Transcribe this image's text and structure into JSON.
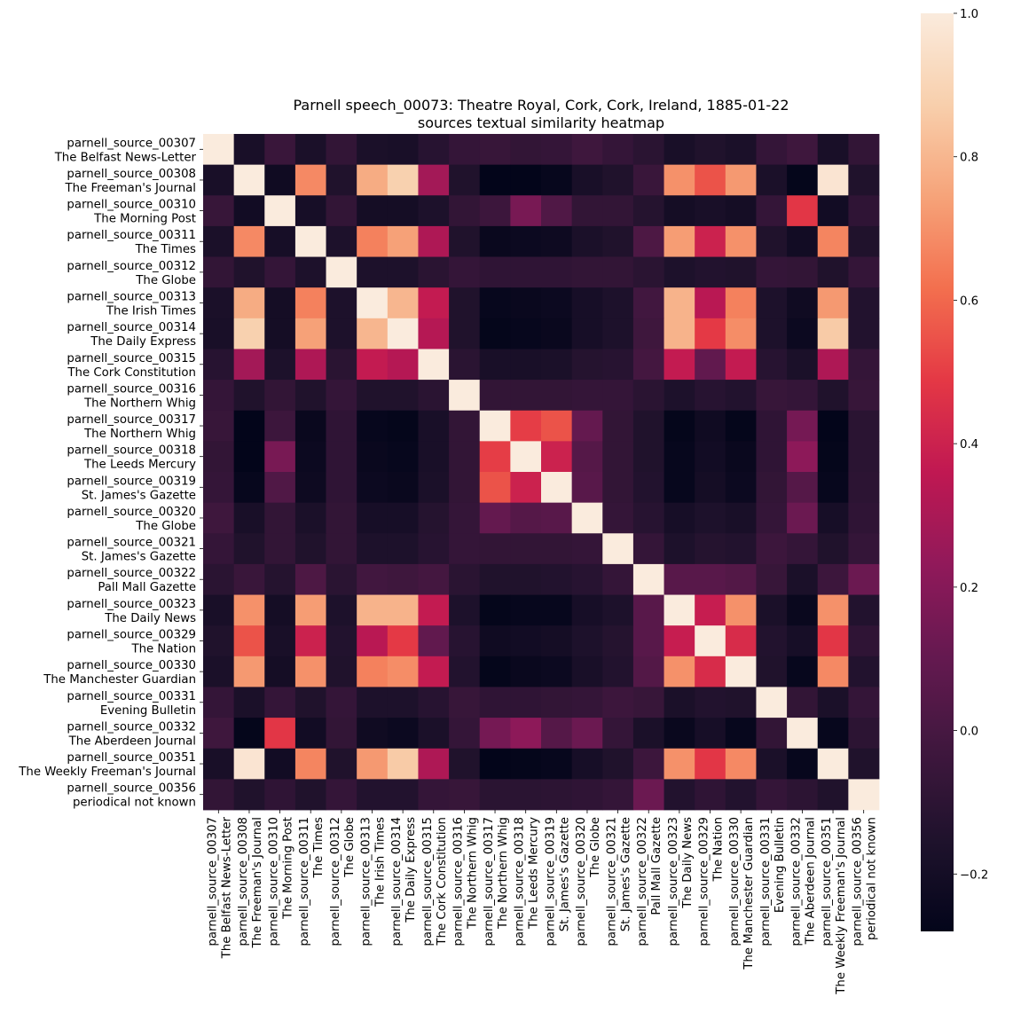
{
  "chart_data": {
    "type": "heatmap",
    "title_lines": [
      "Parnell speech_00073: Theatre Royal, Cork, Cork, Ireland, 1885-01-22",
      "sources textual similarity heatmap"
    ],
    "labels": [
      {
        "id": "parnell_source_00307",
        "name": "The Belfast News-Letter"
      },
      {
        "id": "parnell_source_00308",
        "name": "The Freeman's Journal"
      },
      {
        "id": "parnell_source_00310",
        "name": "The Morning Post"
      },
      {
        "id": "parnell_source_00311",
        "name": "The Times"
      },
      {
        "id": "parnell_source_00312",
        "name": "The Globe"
      },
      {
        "id": "parnell_source_00313",
        "name": "The Irish Times"
      },
      {
        "id": "parnell_source_00314",
        "name": "The Daily Express"
      },
      {
        "id": "parnell_source_00315",
        "name": "The Cork Constitution"
      },
      {
        "id": "parnell_source_00316",
        "name": "The Northern Whig"
      },
      {
        "id": "parnell_source_00317",
        "name": "The Northern Whig"
      },
      {
        "id": "parnell_source_00318",
        "name": "The Leeds Mercury"
      },
      {
        "id": "parnell_source_00319",
        "name": "St. James's Gazette"
      },
      {
        "id": "parnell_source_00320",
        "name": "The Globe"
      },
      {
        "id": "parnell_source_00321",
        "name": "St. James's Gazette"
      },
      {
        "id": "parnell_source_00322",
        "name": "Pall Mall Gazette"
      },
      {
        "id": "parnell_source_00323",
        "name": "The Daily News"
      },
      {
        "id": "parnell_source_00329",
        "name": "The Nation"
      },
      {
        "id": "parnell_source_00330",
        "name": "The Manchester Guardian"
      },
      {
        "id": "parnell_source_00331",
        "name": "Evening Bulletin"
      },
      {
        "id": "parnell_source_00332",
        "name": "The Aberdeen Journal"
      },
      {
        "id": "parnell_source_00351",
        "name": "The Weekly Freeman's Journal"
      },
      {
        "id": "parnell_source_00356",
        "name": "periodical not known"
      }
    ],
    "values": [
      [
        1.0,
        -0.18,
        -0.05,
        -0.17,
        -0.08,
        -0.17,
        -0.18,
        -0.12,
        -0.07,
        -0.06,
        -0.08,
        -0.07,
        -0.03,
        -0.07,
        -0.11,
        -0.18,
        -0.15,
        -0.17,
        -0.07,
        -0.03,
        -0.18,
        -0.08
      ],
      [
        -0.18,
        1.0,
        -0.22,
        0.68,
        -0.15,
        0.77,
        0.88,
        0.28,
        -0.15,
        -0.28,
        -0.28,
        -0.26,
        -0.18,
        -0.15,
        -0.05,
        0.7,
        0.55,
        0.72,
        -0.17,
        -0.27,
        0.97,
        -0.15
      ],
      [
        -0.06,
        -0.21,
        1.0,
        -0.19,
        -0.08,
        -0.2,
        -0.2,
        -0.16,
        -0.08,
        -0.04,
        0.16,
        0.03,
        -0.08,
        -0.08,
        -0.13,
        -0.2,
        -0.18,
        -0.2,
        -0.07,
        0.48,
        -0.21,
        -0.09
      ],
      [
        -0.17,
        0.68,
        -0.19,
        1.0,
        -0.16,
        0.66,
        0.74,
        0.31,
        -0.15,
        -0.25,
        -0.24,
        -0.23,
        -0.17,
        -0.15,
        0.02,
        0.73,
        0.4,
        0.7,
        -0.15,
        -0.21,
        0.67,
        -0.15
      ],
      [
        -0.08,
        -0.15,
        -0.07,
        -0.16,
        1.0,
        -0.16,
        -0.16,
        -0.11,
        -0.07,
        -0.09,
        -0.09,
        -0.09,
        -0.08,
        -0.08,
        -0.11,
        -0.16,
        -0.14,
        -0.15,
        -0.07,
        -0.08,
        -0.15,
        -0.07
      ],
      [
        -0.17,
        0.77,
        -0.2,
        0.66,
        -0.16,
        1.0,
        0.8,
        0.37,
        -0.15,
        -0.26,
        -0.25,
        -0.24,
        -0.19,
        -0.16,
        -0.02,
        0.79,
        0.34,
        0.66,
        -0.16,
        -0.22,
        0.72,
        -0.14
      ],
      [
        -0.18,
        0.88,
        -0.2,
        0.74,
        -0.16,
        0.8,
        1.0,
        0.33,
        -0.15,
        -0.27,
        -0.26,
        -0.25,
        -0.19,
        -0.16,
        -0.03,
        0.79,
        0.49,
        0.69,
        -0.16,
        -0.24,
        0.86,
        -0.14
      ],
      [
        -0.12,
        0.28,
        -0.16,
        0.31,
        -0.11,
        0.37,
        0.33,
        1.0,
        -0.11,
        -0.18,
        -0.18,
        -0.17,
        -0.13,
        -0.12,
        -0.01,
        0.37,
        0.09,
        0.37,
        -0.12,
        -0.17,
        0.31,
        -0.07
      ],
      [
        -0.07,
        -0.15,
        -0.08,
        -0.15,
        -0.07,
        -0.15,
        -0.15,
        -0.11,
        1.0,
        -0.08,
        -0.08,
        -0.08,
        -0.07,
        -0.07,
        -0.11,
        -0.16,
        -0.12,
        -0.14,
        -0.06,
        -0.07,
        -0.15,
        -0.06
      ],
      [
        -0.06,
        -0.28,
        -0.04,
        -0.25,
        -0.09,
        -0.26,
        -0.27,
        -0.18,
        -0.08,
        1.0,
        0.5,
        0.55,
        0.1,
        -0.08,
        -0.15,
        -0.27,
        -0.22,
        -0.27,
        -0.09,
        0.15,
        -0.28,
        -0.11
      ],
      [
        -0.08,
        -0.28,
        0.16,
        -0.24,
        -0.09,
        -0.25,
        -0.26,
        -0.18,
        -0.08,
        0.5,
        1.0,
        0.4,
        0.05,
        -0.08,
        -0.15,
        -0.26,
        -0.21,
        -0.25,
        -0.09,
        0.22,
        -0.27,
        -0.11
      ],
      [
        -0.07,
        -0.26,
        0.03,
        -0.23,
        -0.09,
        -0.24,
        -0.25,
        -0.17,
        -0.08,
        0.55,
        0.4,
        1.0,
        0.06,
        -0.08,
        -0.14,
        -0.26,
        -0.2,
        -0.24,
        -0.08,
        0.05,
        -0.26,
        -0.1
      ],
      [
        -0.03,
        -0.18,
        -0.08,
        -0.17,
        -0.08,
        -0.19,
        -0.19,
        -0.13,
        -0.07,
        0.1,
        0.05,
        0.06,
        1.0,
        -0.07,
        -0.12,
        -0.19,
        -0.16,
        -0.18,
        -0.07,
        0.12,
        -0.19,
        -0.09
      ],
      [
        -0.07,
        -0.15,
        -0.08,
        -0.15,
        -0.08,
        -0.16,
        -0.16,
        -0.12,
        -0.07,
        -0.08,
        -0.08,
        -0.08,
        -0.07,
        1.0,
        -0.07,
        -0.16,
        -0.13,
        -0.14,
        -0.04,
        -0.07,
        -0.15,
        -0.07
      ],
      [
        -0.11,
        -0.05,
        -0.13,
        0.02,
        -0.11,
        -0.02,
        -0.03,
        -0.01,
        -0.11,
        -0.15,
        -0.15,
        -0.14,
        -0.12,
        -0.07,
        1.0,
        0.06,
        0.06,
        0.04,
        -0.06,
        -0.17,
        -0.04,
        0.12
      ],
      [
        -0.18,
        0.7,
        -0.2,
        0.73,
        -0.16,
        0.79,
        0.79,
        0.37,
        -0.16,
        -0.27,
        -0.26,
        -0.26,
        -0.19,
        -0.16,
        0.06,
        1.0,
        0.38,
        0.7,
        -0.17,
        -0.25,
        0.7,
        -0.14
      ],
      [
        -0.15,
        0.55,
        -0.18,
        0.4,
        -0.14,
        0.34,
        0.49,
        0.09,
        -0.12,
        -0.22,
        -0.21,
        -0.2,
        -0.16,
        -0.13,
        0.06,
        0.38,
        1.0,
        0.44,
        -0.14,
        -0.19,
        0.48,
        -0.09
      ],
      [
        -0.17,
        0.72,
        -0.2,
        0.7,
        -0.15,
        0.66,
        0.69,
        0.37,
        -0.14,
        -0.27,
        -0.25,
        -0.24,
        -0.18,
        -0.14,
        0.04,
        0.7,
        0.44,
        1.0,
        -0.15,
        -0.26,
        0.68,
        -0.14
      ],
      [
        -0.07,
        -0.17,
        -0.07,
        -0.15,
        -0.07,
        -0.16,
        -0.16,
        -0.12,
        -0.06,
        -0.09,
        -0.09,
        -0.08,
        -0.07,
        -0.04,
        -0.06,
        -0.17,
        -0.14,
        -0.15,
        1.0,
        -0.08,
        -0.17,
        -0.07
      ],
      [
        -0.03,
        -0.27,
        0.48,
        -0.21,
        -0.08,
        -0.22,
        -0.24,
        -0.17,
        -0.07,
        0.15,
        0.22,
        0.05,
        0.12,
        -0.07,
        -0.17,
        -0.25,
        -0.19,
        -0.26,
        -0.08,
        1.0,
        -0.26,
        -0.1
      ],
      [
        -0.18,
        0.97,
        -0.21,
        0.67,
        -0.15,
        0.72,
        0.86,
        0.31,
        -0.15,
        -0.28,
        -0.27,
        -0.26,
        -0.19,
        -0.15,
        -0.04,
        0.7,
        0.48,
        0.68,
        -0.17,
        -0.26,
        1.0,
        -0.15
      ],
      [
        -0.08,
        -0.15,
        -0.09,
        -0.15,
        -0.07,
        -0.14,
        -0.14,
        -0.07,
        -0.06,
        -0.11,
        -0.11,
        -0.1,
        -0.09,
        -0.07,
        0.12,
        -0.14,
        -0.09,
        -0.14,
        -0.07,
        -0.1,
        -0.15,
        1.0
      ]
    ],
    "vmin": -0.28,
    "vmax": 1.0,
    "colormap": "rocket",
    "colorbar_ticks": [
      1.0,
      0.8,
      0.6,
      0.4,
      0.2,
      0.0,
      -0.2
    ],
    "colorbar_tick_labels": [
      "1.0",
      "0.8",
      "0.6",
      "0.4",
      "0.2",
      "0.0",
      "−0.2"
    ]
  }
}
